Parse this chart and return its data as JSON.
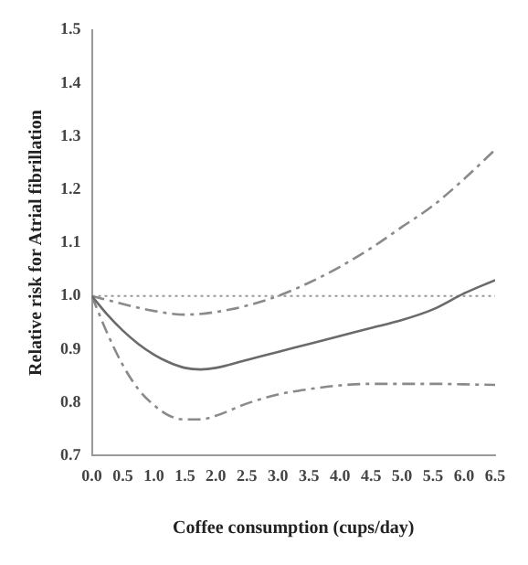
{
  "chart_data": {
    "type": "line",
    "xlabel": "Coffee consumption (cups/day)",
    "ylabel": "Relative risk for Atrial fibrillation",
    "xlim": [
      0,
      6.5
    ],
    "xticks": [
      {
        "value": 0,
        "label": "0.0"
      },
      {
        "value": 0.5,
        "label": "0.5"
      },
      {
        "value": 1,
        "label": "1.0"
      },
      {
        "value": 1.5,
        "label": "1.5"
      },
      {
        "value": 2,
        "label": "2.0"
      },
      {
        "value": 2.5,
        "label": "2.5"
      },
      {
        "value": 3,
        "label": "3.0"
      },
      {
        "value": 3.5,
        "label": "3.5"
      },
      {
        "value": 4,
        "label": "4.0"
      },
      {
        "value": 4.5,
        "label": "4.5"
      },
      {
        "value": 5,
        "label": "5.0"
      },
      {
        "value": 5.5,
        "label": "5.5"
      },
      {
        "value": 6,
        "label": "6.0"
      },
      {
        "value": 6.5,
        "label": "6.5"
      }
    ],
    "ylim": [
      0.7,
      1.5
    ],
    "yticks": [
      0.7,
      0.8,
      0.9,
      {
        "value": 1,
        "label": "1.0"
      },
      1.1,
      1.2,
      1.3,
      1.4,
      1.5
    ],
    "grid": false,
    "marker": "none",
    "series": [
      {
        "color": "#6a6a6a",
        "line_style": "solid",
        "x": [
          0,
          0.25,
          0.5,
          0.75,
          1,
          1.25,
          1.5,
          1.75,
          2,
          2.5,
          3,
          3.5,
          4,
          4.5,
          5,
          5.5,
          6,
          6.5
        ],
        "values": [
          1.0,
          0.965,
          0.935,
          0.91,
          0.89,
          0.875,
          0.865,
          0.862,
          0.865,
          0.88,
          0.895,
          0.91,
          0.925,
          0.94,
          0.955,
          0.975,
          1.005,
          1.03
        ]
      },
      {
        "color": "#8a8a8a",
        "line_style": "dashed",
        "x": [
          0,
          0.5,
          1,
          1.5,
          2,
          2.5,
          3,
          3.5,
          4,
          4.5,
          5,
          5.5,
          6,
          6.5
        ],
        "values": [
          1.0,
          0.985,
          0.972,
          0.965,
          0.97,
          0.982,
          1.0,
          1.025,
          1.055,
          1.09,
          1.13,
          1.17,
          1.22,
          1.275
        ]
      },
      {
        "color": "#8a8a8a",
        "line_style": "dashed",
        "x": [
          0,
          0.25,
          0.5,
          0.75,
          1,
          1.25,
          1.5,
          1.75,
          2,
          2.5,
          3,
          3.5,
          4,
          4.5,
          5,
          5.5,
          6,
          6.5
        ],
        "values": [
          1.0,
          0.93,
          0.87,
          0.825,
          0.795,
          0.775,
          0.768,
          0.768,
          0.775,
          0.798,
          0.815,
          0.825,
          0.832,
          0.835,
          0.835,
          0.835,
          0.834,
          0.833
        ]
      }
    ],
    "ref_lines": [
      {
        "axis": "y",
        "value": 1.0,
        "color": "#9a9a9a",
        "line_style": "dotted"
      }
    ]
  }
}
